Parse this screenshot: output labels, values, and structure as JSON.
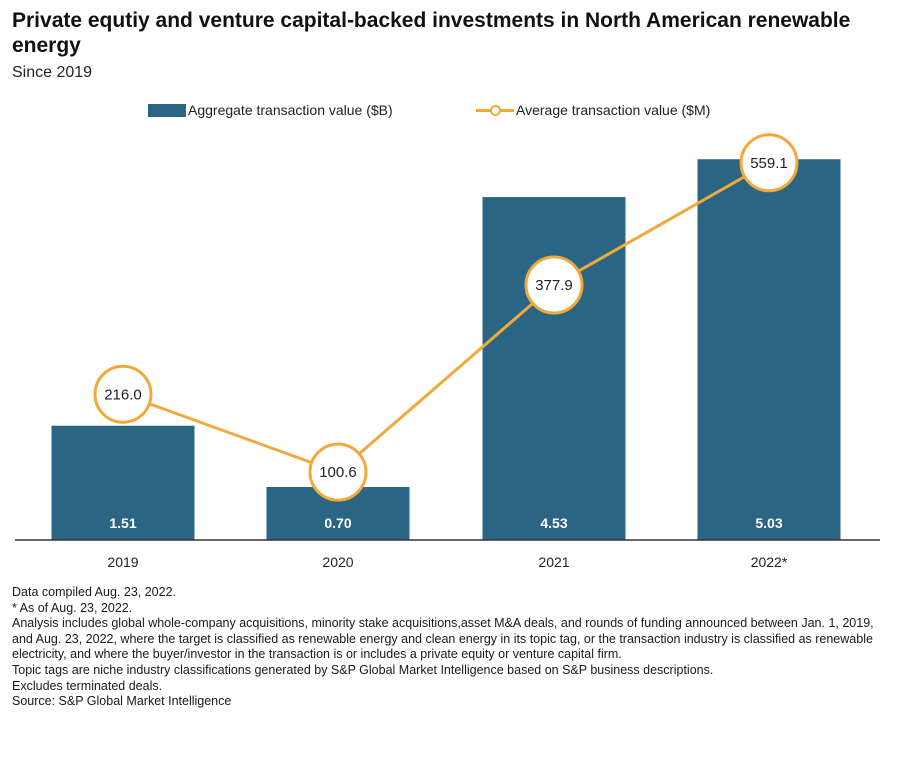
{
  "title": "Private equtiy and venture capital-backed investments in North American renewable energy",
  "subtitle": "Since 2019",
  "legend": {
    "bar_label": "Aggregate transaction value ($B)",
    "line_label": "Average transaction value ($M)"
  },
  "colors": {
    "bar": "#2b6584",
    "line": "#f0a93b",
    "axis": "#333333"
  },
  "chart_data": {
    "type": "bar",
    "title": "Private equtiy and venture capital-backed investments in North American renewable energy",
    "categories": [
      "2019",
      "2020",
      "2021",
      "2022*"
    ],
    "series": [
      {
        "name": "Aggregate transaction value ($B)",
        "type": "bar",
        "values": [
          1.51,
          0.7,
          4.53,
          5.03
        ],
        "labels": [
          "1.51",
          "0.70",
          "4.53",
          "5.03"
        ]
      },
      {
        "name": "Average transaction value ($M)",
        "type": "line",
        "values": [
          216.0,
          100.6,
          377.9,
          559.1
        ],
        "labels": [
          "216.0",
          "100.6",
          "377.9",
          "559.1"
        ]
      }
    ],
    "bar_ylim": [
      0,
      5.2
    ],
    "line_ylim": [
      0,
      600
    ],
    "xlabel": "",
    "ylabel": "",
    "grid": false,
    "legend_position": "top"
  },
  "notes": [
    "Data compiled Aug. 23, 2022.",
    "* As of Aug. 23, 2022.",
    "Analysis includes global whole-company acquisitions, minority stake acquisitions,asset M&A deals, and rounds of funding announced between Jan. 1, 2019, and Aug. 23, 2022, where the target is classified as renewable energy and clean energy in its topic tag, or the transaction industry is classified as renewable electricity, and where the buyer/investor in the transaction is or includes a private equity or venture capital firm.",
    "Topic tags are niche industry classifications generated by S&P Global Market Intelligence based on S&P business descriptions.",
    "Excludes terminated deals.",
    "Source: S&P Global Market Intelligence"
  ]
}
